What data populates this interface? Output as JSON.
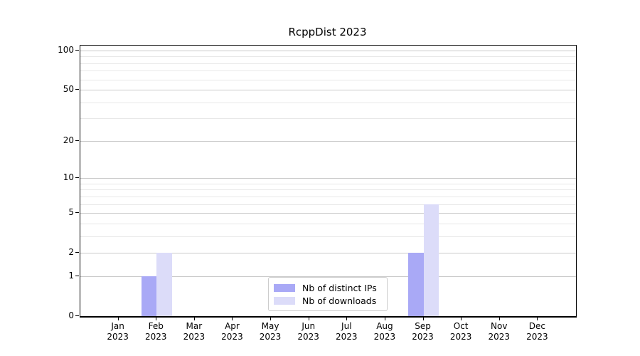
{
  "chart_data": {
    "type": "bar",
    "title": "RcppDist 2023",
    "categories": [
      {
        "month": "Jan",
        "year": "2023"
      },
      {
        "month": "Feb",
        "year": "2023"
      },
      {
        "month": "Mar",
        "year": "2023"
      },
      {
        "month": "Apr",
        "year": "2023"
      },
      {
        "month": "May",
        "year": "2023"
      },
      {
        "month": "Jun",
        "year": "2023"
      },
      {
        "month": "Jul",
        "year": "2023"
      },
      {
        "month": "Aug",
        "year": "2023"
      },
      {
        "month": "Sep",
        "year": "2023"
      },
      {
        "month": "Oct",
        "year": "2023"
      },
      {
        "month": "Nov",
        "year": "2023"
      },
      {
        "month": "Dec",
        "year": "2023"
      }
    ],
    "series": [
      {
        "name": "Nb of distinct IPs",
        "color": "#a9a9f6",
        "values": [
          0,
          1,
          0,
          0,
          0,
          0,
          0,
          0,
          2,
          0,
          0,
          0
        ]
      },
      {
        "name": "Nb of downloads",
        "color": "#dcdcf9",
        "values": [
          0,
          2,
          0,
          0,
          0,
          0,
          0,
          0,
          6,
          0,
          0,
          0
        ]
      }
    ],
    "yscale": "log1p",
    "ylim": [
      0,
      100
    ],
    "y_major_ticks": [
      0,
      1,
      2,
      5,
      10,
      20,
      50,
      100
    ],
    "y_minor_ticks": [
      3,
      4,
      6,
      7,
      8,
      9,
      30,
      40,
      60,
      70,
      80,
      90
    ],
    "grid": true,
    "legend_position": "lower center",
    "colors": {
      "axis": "#000000",
      "grid_major": "#c9c9c9",
      "grid_minor": "#e8e8e8",
      "background": "#ffffff"
    }
  }
}
